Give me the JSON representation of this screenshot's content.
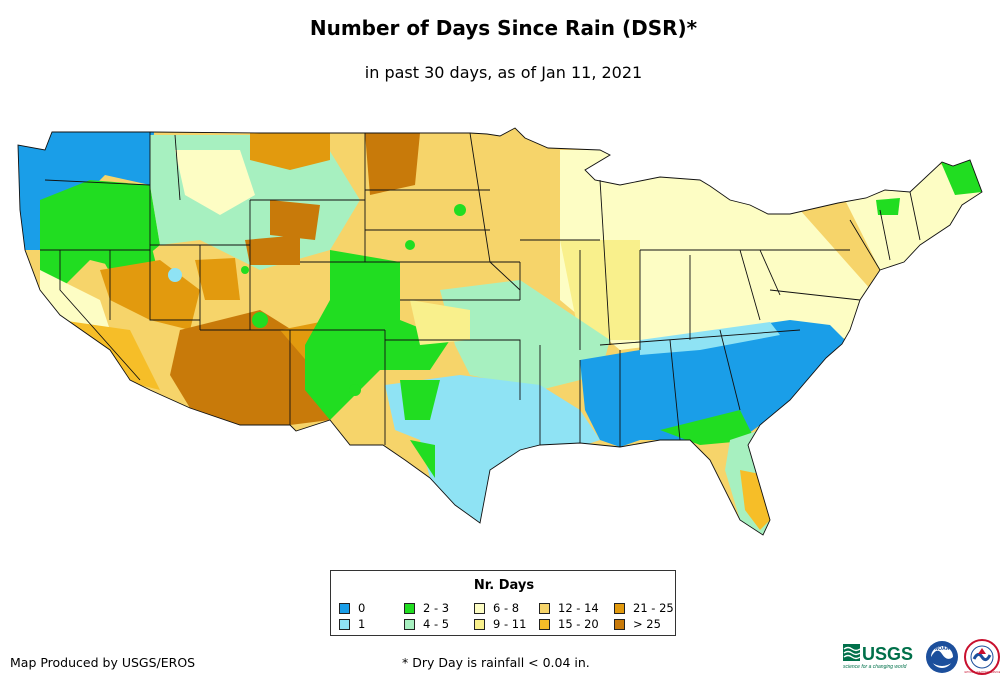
{
  "header": {
    "title": "Number of Days Since Rain (DSR)*",
    "subtitle": "in past 30 days, as of Jan 11, 2021"
  },
  "map": {
    "region": "Contiguous United States"
  },
  "legend": {
    "title": "Nr. Days",
    "items": [
      {
        "label": "0",
        "color": "#1a9ee8"
      },
      {
        "label": "1",
        "color": "#8fe3f4"
      },
      {
        "label": "2 - 3",
        "color": "#21dd21"
      },
      {
        "label": "4 - 5",
        "color": "#a7f0c0"
      },
      {
        "label": "6 - 8",
        "color": "#fdfdc4"
      },
      {
        "label": "9 - 11",
        "color": "#f9f08c"
      },
      {
        "label": "12 - 14",
        "color": "#f6d46a"
      },
      {
        "label": "15 - 20",
        "color": "#f6be28"
      },
      {
        "label": "21 - 25",
        "color": "#e29a0e"
      },
      {
        "label": "> 25",
        "color": "#c87a0a"
      }
    ]
  },
  "footer": {
    "credit": "Map Produced by USGS/EROS",
    "footnote": "* Dry Day is rainfall < 0.04 in."
  },
  "logos": {
    "usgs_text": "USGS",
    "usgs_tagline": "science for a changing world",
    "noaa_text": "NOAA",
    "nws_text": "NATIONAL WEATHER SERVICE"
  }
}
